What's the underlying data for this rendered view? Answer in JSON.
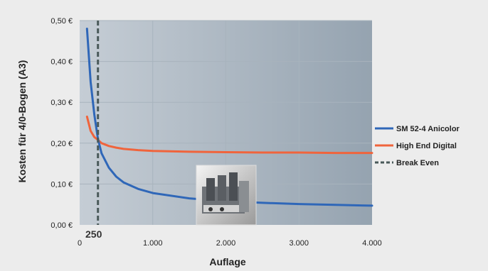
{
  "chart_data": {
    "type": "line",
    "title": "",
    "xlabel": "Auflage",
    "ylabel": "Kosten für 4/0-Bogen (A3)",
    "xlim": [
      0,
      4000
    ],
    "ylim": [
      0,
      0.5
    ],
    "x_ticks": [
      0,
      1000,
      2000,
      3000,
      4000
    ],
    "x_tick_labels": [
      "0",
      "1.000",
      "2.000",
      "3.000",
      "4.000"
    ],
    "y_ticks": [
      0,
      0.1,
      0.2,
      0.3,
      0.4,
      0.5
    ],
    "y_tick_labels": [
      "0,00 €",
      "0,10 €",
      "0,20 €",
      "0,30 €",
      "0,40 €",
      "0,50 €"
    ],
    "grid": true,
    "legend_position": "right",
    "break_even_x": 250,
    "annotation": "250",
    "colors": {
      "plot_bg_light": "#c5cdd5",
      "plot_bg_dark": "#95a3b0",
      "grid": "#a8b3bd",
      "page_bg": "#ececec"
    },
    "series": [
      {
        "name": "SM 52-4 Anicolor",
        "color": "#2f67b8",
        "x": [
          100,
          150,
          200,
          250,
          300,
          400,
          500,
          600,
          800,
          1000,
          1500,
          2000,
          2500,
          3000,
          3500,
          4000
        ],
        "y": [
          0.48,
          0.35,
          0.27,
          0.21,
          0.175,
          0.14,
          0.118,
          0.104,
          0.088,
          0.078,
          0.065,
          0.058,
          0.054,
          0.051,
          0.049,
          0.047
        ]
      },
      {
        "name": "High End Digital",
        "color": "#f0643c",
        "x": [
          100,
          150,
          200,
          250,
          300,
          400,
          500,
          600,
          800,
          1000,
          1500,
          2000,
          2500,
          3000,
          3500,
          4000
        ],
        "y": [
          0.265,
          0.23,
          0.215,
          0.208,
          0.2,
          0.193,
          0.189,
          0.186,
          0.183,
          0.181,
          0.179,
          0.178,
          0.177,
          0.177,
          0.176,
          0.176
        ]
      }
    ],
    "break_even": {
      "name": "Break Even",
      "x": 250,
      "color": "#4a5a5a",
      "style": "dashed"
    }
  }
}
